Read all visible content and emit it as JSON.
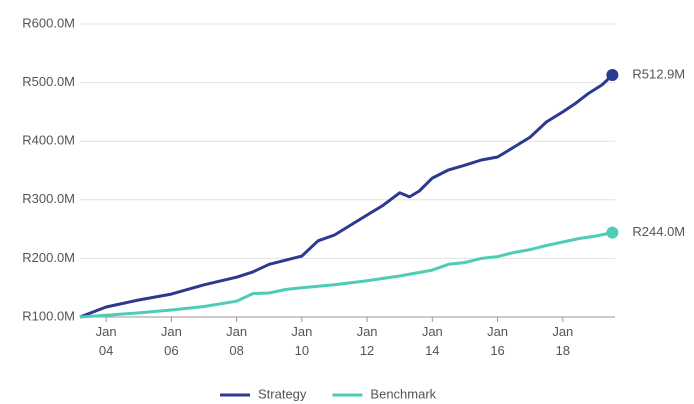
{
  "chart_data": {
    "type": "line",
    "xlim": [
      2003.2,
      2019.6
    ],
    "xticks": [
      {
        "value": 2004,
        "label": "Jan 04"
      },
      {
        "value": 2006,
        "label": "Jan 06"
      },
      {
        "value": 2008,
        "label": "Jan 08"
      },
      {
        "value": 2010,
        "label": "Jan 10"
      },
      {
        "value": 2012,
        "label": "Jan 12"
      },
      {
        "value": 2014,
        "label": "Jan 14"
      },
      {
        "value": 2016,
        "label": "Jan 16"
      },
      {
        "value": 2018,
        "label": "Jan 18"
      }
    ],
    "ylim": [
      100,
      600
    ],
    "yticks": [
      {
        "value": 100,
        "label": "R100.0M"
      },
      {
        "value": 200,
        "label": "R200.0M"
      },
      {
        "value": 300,
        "label": "R300.0M"
      },
      {
        "value": 400,
        "label": "R400.0M"
      },
      {
        "value": 500,
        "label": "R500.0M"
      },
      {
        "value": 600,
        "label": "R600.0M"
      }
    ],
    "grid": true,
    "legend": "bottom",
    "series": [
      {
        "name": "Strategy",
        "color": "#2b3990",
        "x": [
          2003.2,
          2004,
          2005,
          2006,
          2007,
          2008,
          2008.5,
          2009,
          2010,
          2010.5,
          2011,
          2012,
          2012.5,
          2013,
          2013.3,
          2013.6,
          2014,
          2014.5,
          2015,
          2015.5,
          2016,
          2016.5,
          2017,
          2017.5,
          2018,
          2018.4,
          2018.8,
          2019.2,
          2019.52
        ],
        "values": [
          100,
          117,
          129,
          139,
          155,
          168,
          177,
          190,
          204,
          230,
          240,
          274,
          291,
          312,
          305,
          315,
          337,
          351,
          359,
          368,
          373,
          390,
          407,
          433,
          450,
          465,
          482,
          496,
          512.9
        ],
        "end_label": "R512.9M"
      },
      {
        "name": "Benchmark",
        "color": "#4ecdb4",
        "x": [
          2003.2,
          2004,
          2005,
          2006,
          2007,
          2008,
          2008.5,
          2009,
          2009.5,
          2010,
          2011,
          2012,
          2013,
          2014,
          2014.5,
          2015,
          2015.5,
          2016,
          2016.5,
          2017,
          2017.5,
          2018,
          2018.5,
          2019,
          2019.52
        ],
        "values": [
          100,
          103,
          107,
          112,
          118,
          127,
          140,
          141,
          147,
          150,
          155,
          162,
          170,
          180,
          190,
          193,
          200,
          203,
          210,
          215,
          222,
          228,
          234,
          238,
          244
        ],
        "end_label": "R244.0M"
      }
    ]
  }
}
